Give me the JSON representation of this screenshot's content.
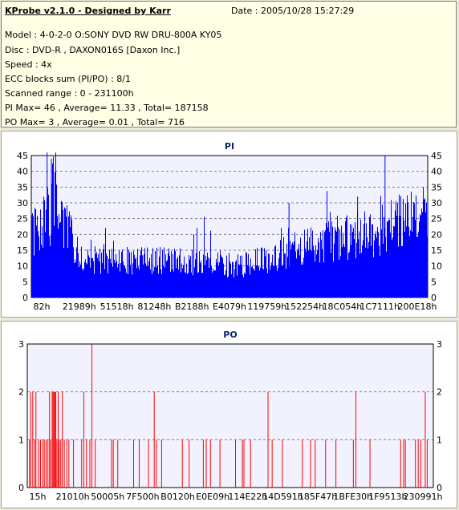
{
  "info": {
    "title": "KProbe v2.1.0 - Designed by Karr",
    "date": "Date : 2005/10/28 15:27:29",
    "lines": [
      "Model : 4-0-2-0 O:SONY    DVD RW DRU-800A  KY05",
      "Disc : DVD-R , DAXON016S [Daxon Inc.]",
      "Speed : 4x",
      "ECC blocks sum (PI/PO) : 8/1",
      "Scanned range : 0 - 231100h",
      "PI Max= 46 , Average= 11.33 , Total= 187158",
      "PO Max= 3 , Average= 0.01 , Total= 716"
    ]
  },
  "colors": {
    "pi_bar": "#0000ff",
    "po_bar": "#ff0000",
    "plot_bg": "#f2f2ff",
    "grid": "#7f7f7f"
  },
  "chart_data": [
    {
      "type": "bar",
      "title": "PI",
      "ylim": [
        0,
        45
      ],
      "yticks": [
        0,
        5,
        10,
        15,
        20,
        25,
        30,
        35,
        40,
        45
      ],
      "xlim": [
        0,
        231100
      ],
      "xtick_labels": [
        "82h",
        "21989h",
        "51518h",
        "81248h",
        "B2188h",
        "E4079h",
        "119759h",
        "152254h",
        "18C054h",
        "1C7111h",
        "200E18h"
      ],
      "series_profile": {
        "x": [
          0,
          8000,
          14000,
          20000,
          30000,
          45000,
          80000,
          110000,
          120000,
          135000,
          150000,
          170000,
          190000,
          205000,
          215000,
          225000,
          231100
        ],
        "y": [
          22,
          26,
          34,
          24,
          14,
          13,
          13,
          12,
          11,
          13,
          16,
          20,
          22,
          24,
          27,
          29,
          29
        ],
        "max": 46,
        "average": 11.33,
        "total": 187158
      }
    },
    {
      "type": "bar",
      "title": "PO",
      "ylim": [
        0,
        3
      ],
      "yticks": [
        0,
        1,
        2,
        3
      ],
      "xlim": [
        0,
        231100
      ],
      "xtick_labels": [
        "15h",
        "21010h",
        "50005h",
        "7F500h",
        "B0120h",
        "E0E09h",
        "114E22h",
        "14D591h",
        "185F47h",
        "1BFE30h",
        "1F9513h",
        "230991h"
      ],
      "spikes": [
        {
          "x": 1500,
          "y": 1
        },
        {
          "x": 2500,
          "y": 2
        },
        {
          "x": 4200,
          "y": 2
        },
        {
          "x": 5800,
          "y": 1
        },
        {
          "x": 6800,
          "y": 2
        },
        {
          "x": 9000,
          "y": 1
        },
        {
          "x": 10600,
          "y": 1
        },
        {
          "x": 12500,
          "y": 1
        },
        {
          "x": 13700,
          "y": 1
        },
        {
          "x": 15200,
          "y": 1
        },
        {
          "x": 16700,
          "y": 1
        },
        {
          "x": 18000,
          "y": 2
        },
        {
          "x": 19000,
          "y": 1
        },
        {
          "x": 20200,
          "y": 2
        },
        {
          "x": 21000,
          "y": 2
        },
        {
          "x": 21700,
          "y": 2
        },
        {
          "x": 22400,
          "y": 2
        },
        {
          "x": 23200,
          "y": 2
        },
        {
          "x": 24100,
          "y": 1
        },
        {
          "x": 25200,
          "y": 2
        },
        {
          "x": 26000,
          "y": 1
        },
        {
          "x": 27300,
          "y": 1
        },
        {
          "x": 28600,
          "y": 2
        },
        {
          "x": 30200,
          "y": 1
        },
        {
          "x": 32400,
          "y": 1
        },
        {
          "x": 34000,
          "y": 1
        },
        {
          "x": 37800,
          "y": 1
        },
        {
          "x": 44500,
          "y": 1
        },
        {
          "x": 46300,
          "y": 2
        },
        {
          "x": 48500,
          "y": 1
        },
        {
          "x": 51300,
          "y": 1
        },
        {
          "x": 53000,
          "y": 3
        },
        {
          "x": 55700,
          "y": 1
        },
        {
          "x": 69200,
          "y": 1
        },
        {
          "x": 70600,
          "y": 1
        },
        {
          "x": 74300,
          "y": 1
        },
        {
          "x": 87400,
          "y": 1
        },
        {
          "x": 92000,
          "y": 1
        },
        {
          "x": 99700,
          "y": 1
        },
        {
          "x": 104400,
          "y": 2
        },
        {
          "x": 106200,
          "y": 1
        },
        {
          "x": 110500,
          "y": 1
        },
        {
          "x": 127600,
          "y": 1
        },
        {
          "x": 133200,
          "y": 1
        },
        {
          "x": 144900,
          "y": 1
        },
        {
          "x": 147300,
          "y": 1
        },
        {
          "x": 150800,
          "y": 1
        },
        {
          "x": 158600,
          "y": 1
        },
        {
          "x": 171500,
          "y": 1
        },
        {
          "x": 177100,
          "y": 1
        },
        {
          "x": 178400,
          "y": 1
        },
        {
          "x": 183900,
          "y": 1
        },
        {
          "x": 198300,
          "y": 2
        },
        {
          "x": 201700,
          "y": 1
        },
        {
          "x": 210100,
          "y": 1
        },
        {
          "x": 226600,
          "y": 1
        },
        {
          "x": 233400,
          "y": 1
        },
        {
          "x": 237200,
          "y": 1
        },
        {
          "x": 245800,
          "y": 1
        },
        {
          "x": 254300,
          "y": 1
        },
        {
          "x": 268700,
          "y": 1
        },
        {
          "x": 270800,
          "y": 2
        },
        {
          "x": 282400,
          "y": 1
        },
        {
          "x": 307700,
          "y": 1
        },
        {
          "x": 310200,
          "y": 1
        },
        {
          "x": 311600,
          "y": 1
        },
        {
          "x": 319900,
          "y": 1
        },
        {
          "x": 322200,
          "y": 1
        },
        {
          "x": 324400,
          "y": 1
        },
        {
          "x": 328000,
          "y": 2
        },
        {
          "x": 329600,
          "y": 1
        }
      ]
    }
  ]
}
